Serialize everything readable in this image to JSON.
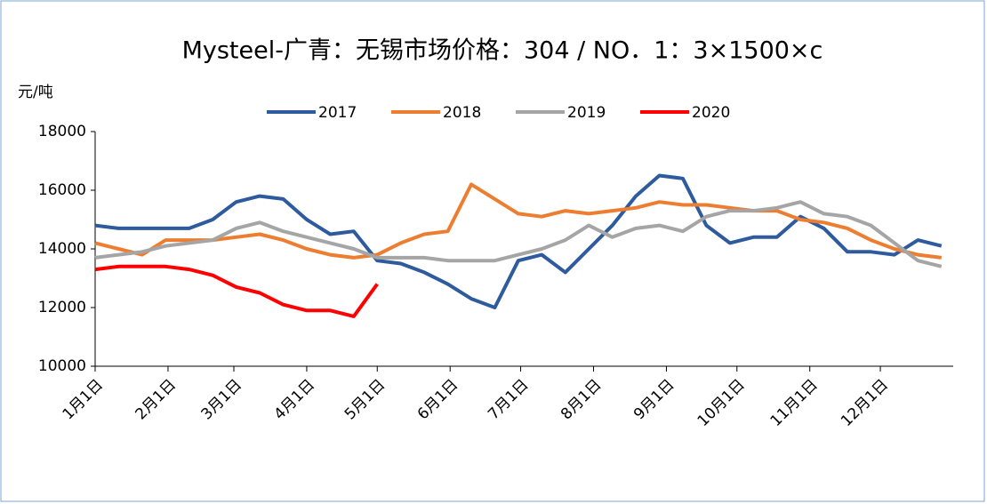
{
  "chart_data": {
    "type": "line",
    "title": "Mysteel-广青：无锡市场价格：304 / NO．1：3×1500×c",
    "y_label": "元/吨",
    "x": [
      0,
      10,
      20,
      30,
      40,
      50,
      60,
      70,
      80,
      90,
      100,
      110,
      120,
      130,
      140,
      150,
      160,
      170,
      180,
      190,
      200,
      210,
      220,
      230,
      240,
      250,
      260,
      270,
      280,
      290,
      300,
      310,
      320,
      330,
      340,
      350,
      360
    ],
    "xlim": [
      0,
      365
    ],
    "xticks": [
      {
        "value": 0,
        "label": "1月1日"
      },
      {
        "value": 31,
        "label": "2月1日"
      },
      {
        "value": 59,
        "label": "3月1日"
      },
      {
        "value": 90,
        "label": "4月1日"
      },
      {
        "value": 120,
        "label": "5月1日"
      },
      {
        "value": 151,
        "label": "6月1日"
      },
      {
        "value": 181,
        "label": "7月1日"
      },
      {
        "value": 212,
        "label": "8月1日"
      },
      {
        "value": 243,
        "label": "9月1日"
      },
      {
        "value": 273,
        "label": "10月1日"
      },
      {
        "value": 304,
        "label": "11月1日"
      },
      {
        "value": 334,
        "label": "12月1日"
      }
    ],
    "ylim": [
      10000,
      18000
    ],
    "yticks": [
      10000,
      12000,
      14000,
      16000,
      18000
    ],
    "legend": "top",
    "series": [
      {
        "name": "2017",
        "color": "#2e5a9e",
        "values": [
          14800,
          14700,
          14700,
          14700,
          14700,
          15000,
          15600,
          15800,
          15700,
          15000,
          14500,
          14600,
          13600,
          13500,
          13200,
          12800,
          12300,
          12000,
          13600,
          13800,
          13200,
          14000,
          14800,
          15800,
          16500,
          16400,
          14800,
          14200,
          14400,
          14400,
          15100,
          14700,
          13900,
          13900,
          13800,
          14300,
          14100
        ]
      },
      {
        "name": "2018",
        "color": "#ed7d31",
        "values": [
          14200,
          14000,
          13800,
          14300,
          14300,
          14300,
          14400,
          14500,
          14300,
          14000,
          13800,
          13700,
          13800,
          14200,
          14500,
          14600,
          16200,
          15700,
          15200,
          15100,
          15300,
          15200,
          15300,
          15400,
          15600,
          15500,
          15500,
          15400,
          15300,
          15300,
          15000,
          14900,
          14700,
          14300,
          14000,
          13800,
          13700
        ]
      },
      {
        "name": "2019",
        "color": "#a5a5a5",
        "values": [
          13700,
          13800,
          13900,
          14100,
          14200,
          14300,
          14700,
          14900,
          14600,
          14400,
          14200,
          14000,
          13700,
          13700,
          13700,
          13600,
          13600,
          13600,
          13800,
          14000,
          14300,
          14800,
          14400,
          14700,
          14800,
          14600,
          15100,
          15300,
          15300,
          15400,
          15600,
          15200,
          15100,
          14800,
          14200,
          13600,
          13400
        ]
      },
      {
        "name": "2020",
        "color": "#ff0000",
        "values": [
          13300,
          13400,
          13400,
          13400,
          13300,
          13100,
          12700,
          12500,
          12100,
          11900,
          11900,
          11700,
          12800,
          null,
          null,
          null,
          null,
          null,
          null,
          null,
          null,
          null,
          null,
          null,
          null,
          null,
          null,
          null,
          null,
          null,
          null,
          null,
          null,
          null,
          null,
          null,
          null
        ]
      }
    ]
  }
}
